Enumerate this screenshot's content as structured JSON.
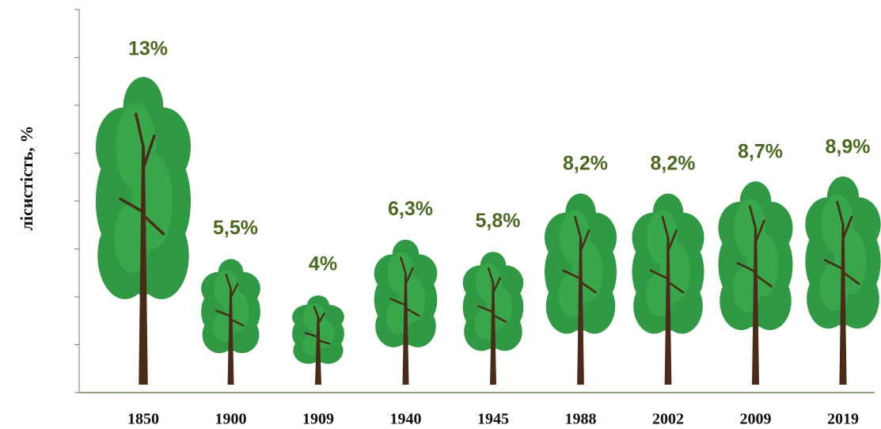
{
  "chart_data": {
    "type": "pictograph",
    "y_label": "лісистість, %",
    "categories": [
      "1850",
      "1900",
      "1909",
      "1940",
      "1945",
      "1988",
      "2002",
      "2009",
      "2019"
    ],
    "values": [
      13,
      5.5,
      4,
      6.3,
      5.8,
      8.2,
      8.2,
      8.7,
      8.9
    ],
    "value_labels": [
      "13%",
      "5,5%",
      "4%",
      "6,3%",
      "5,8%",
      "8,2%",
      "8,2%",
      "8,7%",
      "8,9%"
    ],
    "color": "#3aa84b",
    "ylim": [
      0,
      16
    ],
    "yticks": [
      0,
      2,
      4,
      6,
      8,
      10,
      12,
      14,
      16
    ]
  }
}
